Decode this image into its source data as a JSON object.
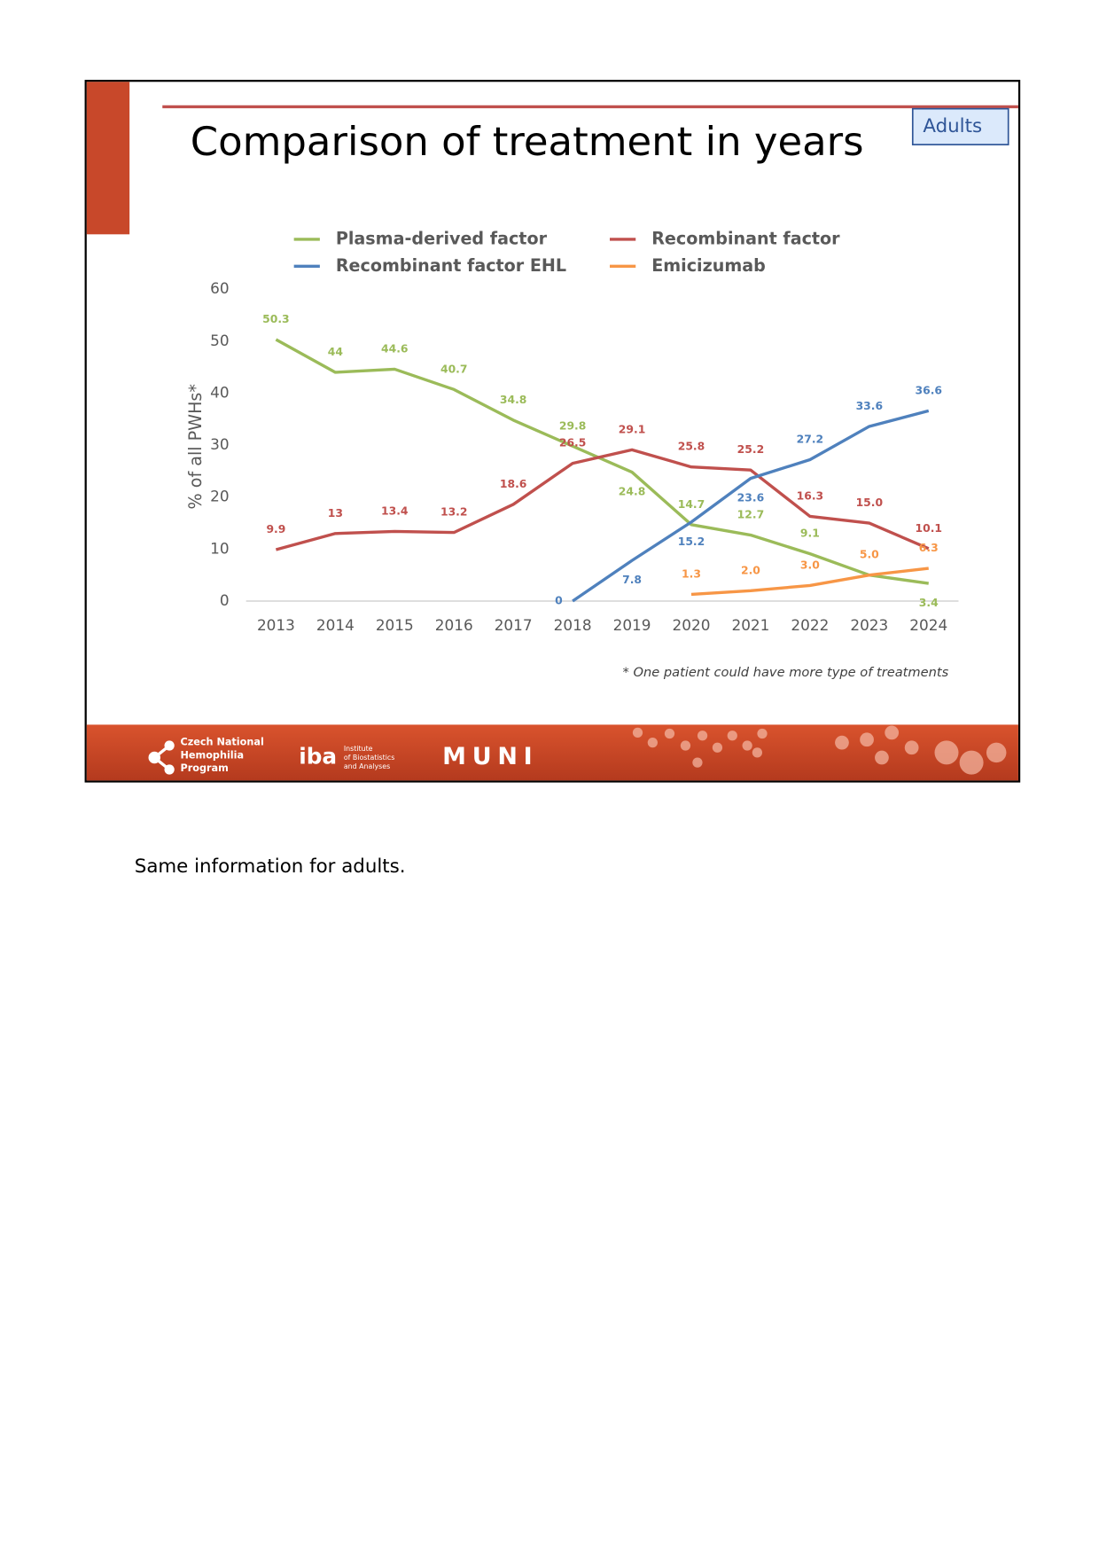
{
  "chart_data": {
    "type": "line",
    "title": "Comparison of treatment in years",
    "y_label": "% of all PWHs*",
    "footnote": "* One patient could have more type of treatments",
    "categories": [
      "2013",
      "2014",
      "2015",
      "2016",
      "2017",
      "2018",
      "2019",
      "2020",
      "2021",
      "2022",
      "2023",
      "2024"
    ],
    "ylim": [
      0,
      60
    ],
    "yticks": [
      0,
      10,
      20,
      30,
      40,
      50,
      60
    ],
    "grid": false,
    "legend": "top",
    "series": [
      {
        "name": "Plasma-derived factor",
        "color": "#9bbb59",
        "values": [
          50.3,
          44,
          44.6,
          40.7,
          34.8,
          29.8,
          24.8,
          14.7,
          12.7,
          9.1,
          5,
          3.4
        ],
        "value_labels": [
          "50.3",
          "44",
          "44.6",
          "40.7",
          "34.8",
          "29.8",
          "24.8",
          "14.7",
          "12.7",
          "9.1",
          null,
          "3.4"
        ]
      },
      {
        "name": "Recombinant factor",
        "color": "#c0504d",
        "values": [
          9.9,
          13,
          13.4,
          13.2,
          18.6,
          26.5,
          29.1,
          25.8,
          25.2,
          16.3,
          15.0,
          10.1
        ],
        "value_labels": [
          "9.9",
          "13",
          "13.4",
          "13.2",
          "18.6",
          "26.5",
          "29.1",
          "25.8",
          "25.2",
          "16.3",
          "15.0",
          "10.1"
        ]
      },
      {
        "name": "Recombinant factor EHL",
        "color": "#4f81bd",
        "values": [
          null,
          null,
          null,
          null,
          null,
          0,
          7.8,
          15.2,
          23.6,
          27.2,
          33.6,
          36.6
        ],
        "value_labels": [
          null,
          null,
          null,
          null,
          null,
          "0",
          "7.8",
          "15.2",
          "23.6",
          "27.2",
          "33.6",
          "36.6"
        ]
      },
      {
        "name": "Emicizumab",
        "color": "#f79646",
        "values": [
          null,
          null,
          null,
          null,
          null,
          null,
          null,
          1.3,
          2.0,
          3.0,
          5.0,
          6.3
        ],
        "value_labels": [
          null,
          null,
          null,
          null,
          null,
          null,
          null,
          "1.3",
          "2.0",
          "3.0",
          "5.0",
          "6.3"
        ]
      }
    ]
  },
  "badge": "Adults",
  "footer": {
    "program": [
      "Czech National",
      "Hemophilia",
      "Program"
    ],
    "iba": "iba",
    "institute": [
      "Institute",
      "of Biostatistics",
      "and Analyses"
    ],
    "muni": "MUNI"
  },
  "caption": "Same information for adults."
}
